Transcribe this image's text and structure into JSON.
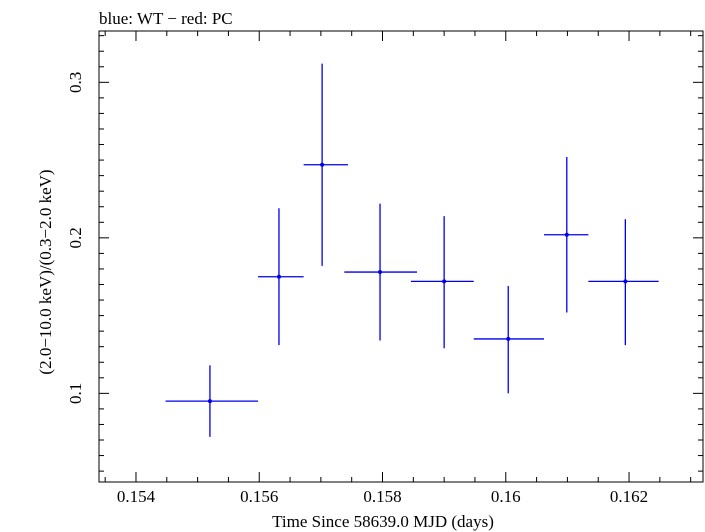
{
  "chart_data": {
    "type": "scatter",
    "title": "blue: WT − red: PC",
    "xlabel": "Time Since 58639.0 MJD (days)",
    "ylabel": "(2.0−10.0 keV)/(0.3−2.0 keV)",
    "xlim": [
      0.1534,
      0.1632
    ],
    "ylim": [
      0.043,
      0.333
    ],
    "x_ticks": [
      0.154,
      0.156,
      0.158,
      0.16,
      0.162
    ],
    "x_tick_labels": [
      "0.154",
      "0.156",
      "0.158",
      "0.16",
      "0.162"
    ],
    "y_ticks": [
      0.1,
      0.2,
      0.3
    ],
    "y_tick_labels": [
      "0.1",
      "0.2",
      "0.3"
    ],
    "grid": false,
    "series": [
      {
        "color": "#0000ee",
        "points": [
          {
            "x": 0.1552,
            "y": 0.095,
            "xerr_lo": 0.15448,
            "xerr_hi": 0.15598,
            "yerr_lo": 0.072,
            "yerr_hi": 0.118
          },
          {
            "x": 0.15632,
            "y": 0.175,
            "xerr_lo": 0.15598,
            "xerr_hi": 0.15672,
            "yerr_lo": 0.131,
            "yerr_hi": 0.219
          },
          {
            "x": 0.15702,
            "y": 0.247,
            "xerr_lo": 0.15672,
            "xerr_hi": 0.15744,
            "yerr_lo": 0.182,
            "yerr_hi": 0.312
          },
          {
            "x": 0.15796,
            "y": 0.178,
            "xerr_lo": 0.15738,
            "xerr_hi": 0.15856,
            "yerr_lo": 0.134,
            "yerr_hi": 0.222
          },
          {
            "x": 0.159,
            "y": 0.172,
            "xerr_lo": 0.15846,
            "xerr_hi": 0.15948,
            "yerr_lo": 0.129,
            "yerr_hi": 0.214
          },
          {
            "x": 0.16004,
            "y": 0.135,
            "xerr_lo": 0.15948,
            "xerr_hi": 0.16062,
            "yerr_lo": 0.1,
            "yerr_hi": 0.169
          },
          {
            "x": 0.16099,
            "y": 0.202,
            "xerr_lo": 0.16062,
            "xerr_hi": 0.16134,
            "yerr_lo": 0.152,
            "yerr_hi": 0.252
          },
          {
            "x": 0.16194,
            "y": 0.172,
            "xerr_lo": 0.16134,
            "xerr_hi": 0.16248,
            "yerr_lo": 0.131,
            "yerr_hi": 0.212
          }
        ]
      }
    ]
  }
}
